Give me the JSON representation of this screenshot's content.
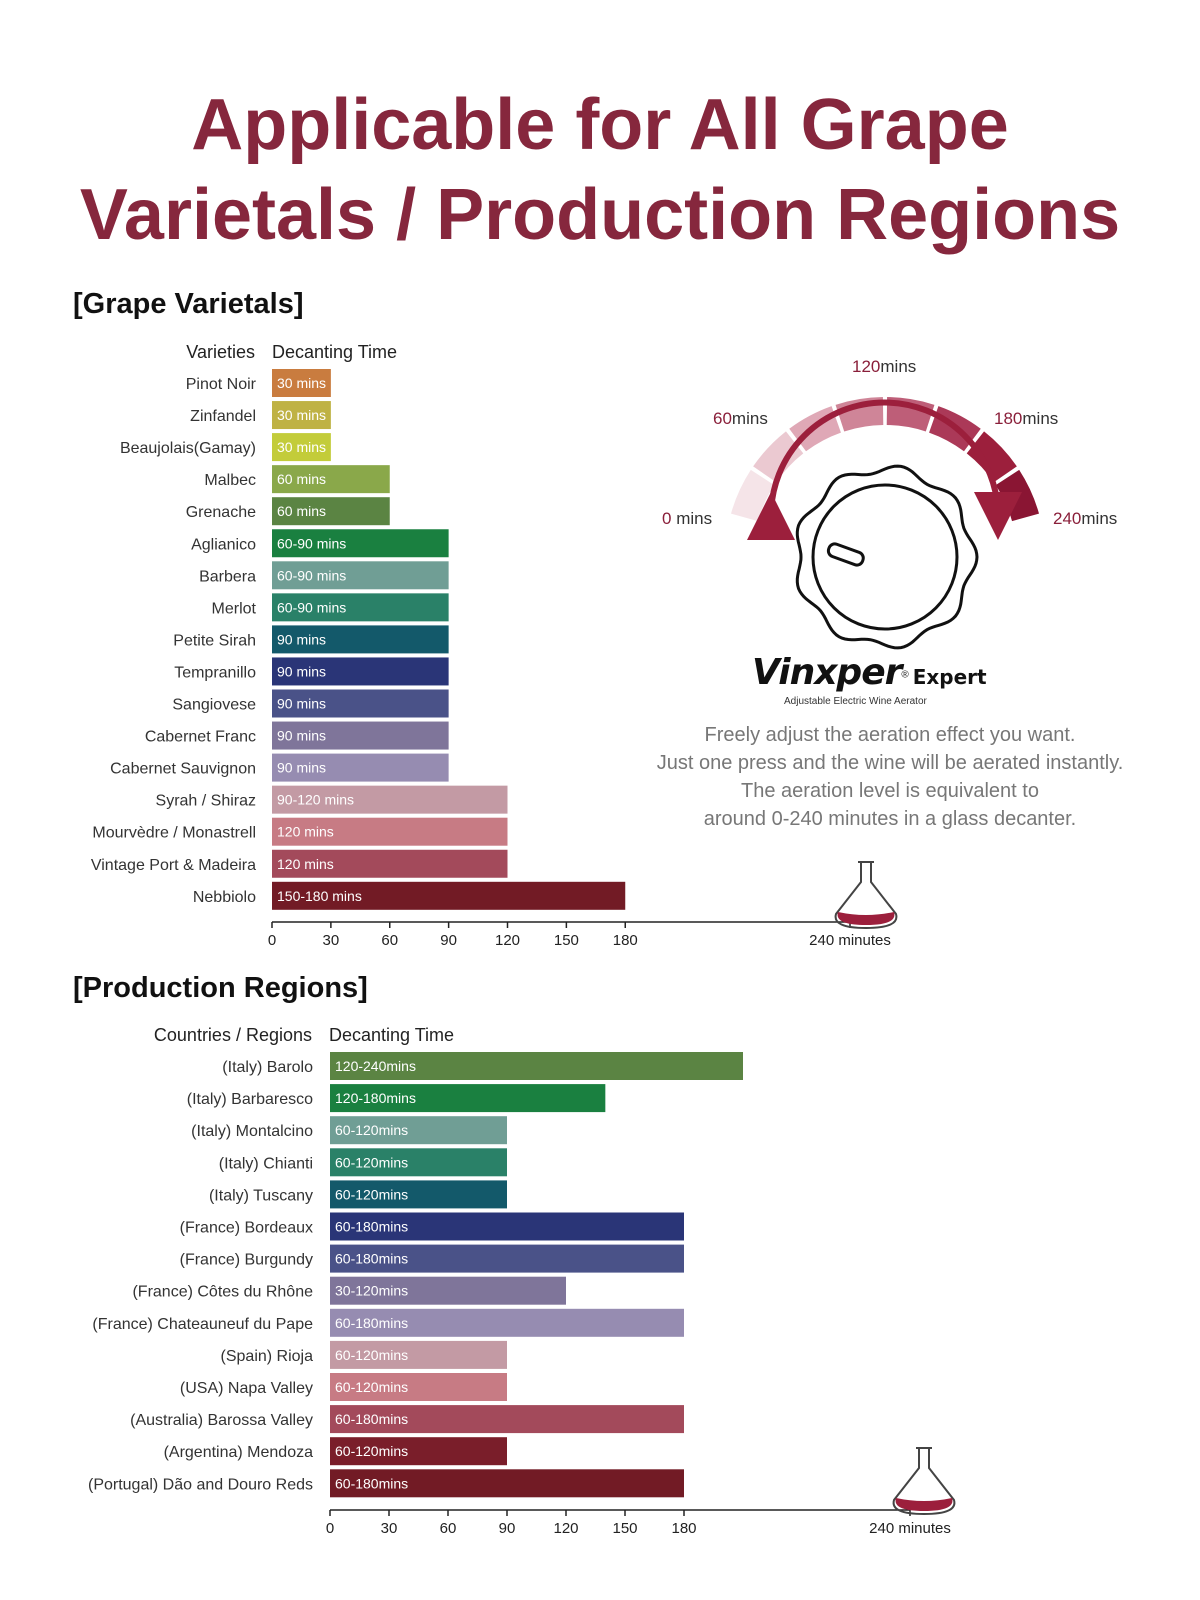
{
  "title": {
    "line1": "Applicable for All Grape",
    "line2": "Varietals / Production Regions"
  },
  "varietals_section": {
    "heading": "[Grape Varietals]",
    "col_label": "Varieties",
    "col_value": "Decanting Time"
  },
  "regions_section": {
    "heading": "[Production Regions]",
    "col_label": "Countries / Regions",
    "col_value": "Decanting Time"
  },
  "dial": {
    "labels": [
      {
        "num": "0",
        "unit": " mins"
      },
      {
        "num": "60",
        "unit": "mins"
      },
      {
        "num": "120",
        "unit": "mins"
      },
      {
        "num": "180",
        "unit": "mins"
      },
      {
        "num": "240",
        "unit": "mins"
      }
    ]
  },
  "brand": {
    "name": "Vinxper",
    "registered": "®",
    "tier": "Expert",
    "subtitle": "Adjustable Electric Wine Aerator"
  },
  "description": [
    "Freely adjust the aeration effect you want.",
    "Just one press and the wine will be aerated instantly.",
    "The aeration level is equivalent to",
    "around 0-240 minutes in a glass decanter."
  ],
  "colors": {
    "title": "#86273d",
    "wine": "#9c1f3c"
  },
  "chart_data": [
    {
      "type": "bar",
      "orientation": "horizontal",
      "title": "[Grape Varietals]",
      "xlabel": "minutes",
      "ylabel": "Varieties",
      "xlim": [
        0,
        240
      ],
      "ticks": [
        {
          "value": 0,
          "label": "0"
        },
        {
          "value": 30,
          "label": "30"
        },
        {
          "value": 60,
          "label": "60"
        },
        {
          "value": 90,
          "label": "90"
        },
        {
          "value": 120,
          "label": "120"
        },
        {
          "value": 150,
          "label": "150"
        },
        {
          "value": 180,
          "label": "180"
        },
        {
          "value": 240,
          "label": "240 minutes"
        }
      ],
      "categories": [
        "Pinot Noir",
        "Zinfandel",
        "Beaujolais(Gamay)",
        "Malbec",
        "Grenache",
        "Aglianico",
        "Barbera",
        "Merlot",
        "Petite Sirah",
        "Tempranillo",
        "Sangiovese",
        "Cabernet Franc",
        "Cabernet Sauvignon",
        "Syrah / Shiraz",
        "Mourvèdre / Monastrell",
        "Vintage Port & Madeira",
        "Nebbiolo"
      ],
      "values": [
        30,
        30,
        30,
        60,
        60,
        90,
        90,
        90,
        90,
        90,
        90,
        90,
        90,
        120,
        120,
        120,
        180
      ],
      "data_labels": [
        "30 mins",
        "30 mins",
        "30 mins",
        "60 mins",
        "60 mins",
        "60-90 mins",
        "60-90 mins",
        "60-90 mins",
        "90 mins",
        "90 mins",
        "90 mins",
        "90 mins",
        "90 mins",
        "90-120 mins",
        "120 mins",
        "120 mins",
        "150-180 mins"
      ],
      "bar_colors": [
        "#c97c3f",
        "#bfb244",
        "#c3cc3a",
        "#8aa84a",
        "#5b8443",
        "#1a8040",
        "#709e95",
        "#2a8168",
        "#13596a",
        "#2a3577",
        "#4a5288",
        "#7f759a",
        "#968cb1",
        "#c39aa4",
        "#c77b84",
        "#a34a5b",
        "#721b25"
      ]
    },
    {
      "type": "bar",
      "orientation": "horizontal",
      "title": "[Production Regions]",
      "xlabel": "minutes",
      "ylabel": "Countries / Regions",
      "xlim": [
        0,
        240
      ],
      "ticks": [
        {
          "value": 0,
          "label": "0"
        },
        {
          "value": 30,
          "label": "30"
        },
        {
          "value": 60,
          "label": "60"
        },
        {
          "value": 90,
          "label": "90"
        },
        {
          "value": 120,
          "label": "120"
        },
        {
          "value": 150,
          "label": "150"
        },
        {
          "value": 180,
          "label": "180"
        },
        {
          "value": 240,
          "label": "240 minutes"
        }
      ],
      "categories": [
        "(Italy) Barolo",
        "(Italy) Barbaresco",
        "(Italy) Montalcino",
        "(Italy) Chianti",
        "(Italy) Tuscany",
        "(France) Bordeaux",
        "(France) Burgundy",
        "(France) Côtes du Rhône",
        "(France) Chateauneuf du Pape",
        "(Spain) Rioja",
        "(USA) Napa Valley",
        "(Australia) Barossa Valley",
        "(Argentina) Mendoza",
        "(Portugal) Dão and Douro Reds"
      ],
      "values": [
        210,
        140,
        90,
        90,
        90,
        180,
        180,
        120,
        180,
        90,
        90,
        180,
        90,
        180
      ],
      "data_labels": [
        "120-240mins",
        "120-180mins",
        "60-120mins",
        "60-120mins",
        "60-120mins",
        "60-180mins",
        "60-180mins",
        "30-120mins",
        "60-180mins",
        "60-120mins",
        "60-120mins",
        "60-180mins",
        "60-120mins",
        "60-180mins"
      ],
      "bar_colors": [
        "#5b8443",
        "#1a8040",
        "#709e95",
        "#2a8168",
        "#13596a",
        "#2a3577",
        "#4a5288",
        "#7f759a",
        "#968cb1",
        "#c39aa4",
        "#c77b84",
        "#a34a5b",
        "#7a1e2a",
        "#721b25"
      ]
    }
  ]
}
